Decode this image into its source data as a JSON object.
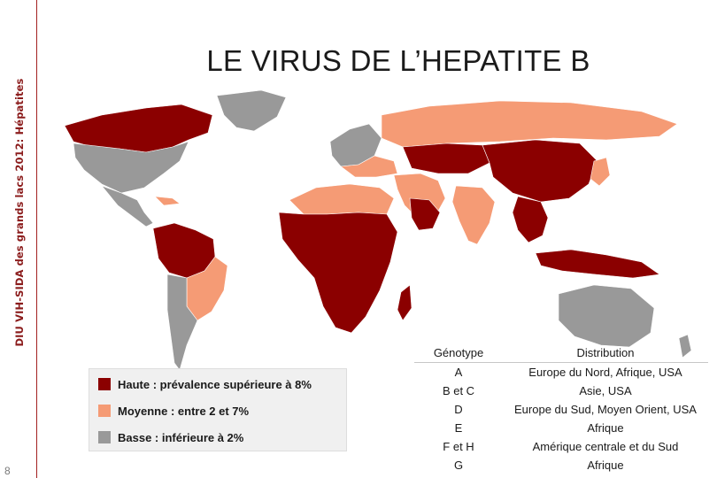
{
  "sidebar": {
    "title": "DIU VIH-SIDA des grands lacs 2012: Hépatites",
    "page_number": "8"
  },
  "slide": {
    "title": "LE VIRUS DE L’HEPATITE B"
  },
  "colors": {
    "haute": "#8b0000",
    "moyenne": "#f59b75",
    "basse": "#999999",
    "ocean": "#ffffff",
    "accent": "#8b1c1c"
  },
  "legend": [
    {
      "label": "Haute : prévalence supérieure à 8%",
      "color": "#8b0000"
    },
    {
      "label": "Moyenne : entre 2 et 7%",
      "color": "#f59b75"
    },
    {
      "label": "Basse : inférieure à 2%",
      "color": "#999999"
    }
  ],
  "table": {
    "headers": [
      "Génotype",
      "Distribution"
    ],
    "rows": [
      [
        "A",
        "Europe du Nord, Afrique, USA"
      ],
      [
        "B et C",
        "Asie, USA"
      ],
      [
        "D",
        "Europe du Sud, Moyen Orient, USA"
      ],
      [
        "E",
        "Afrique"
      ],
      [
        "F et H",
        "Amérique centrale et du Sud"
      ],
      [
        "G",
        "Afrique"
      ]
    ]
  }
}
